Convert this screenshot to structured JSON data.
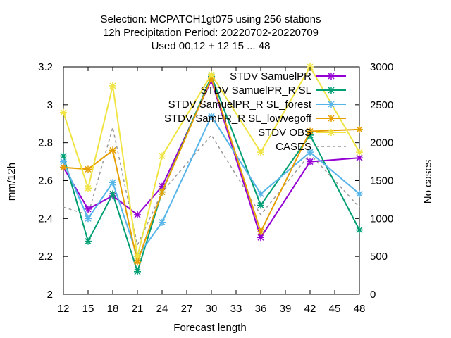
{
  "chart_data": {
    "type": "line",
    "title_lines": [
      "Selection: MCPATCH1gt075 using   256 stations",
      "12h Precipitation    Period: 20220702-20220709",
      "Used  00,12  + 12 15 ... 48"
    ],
    "xlabel": "Forecast length",
    "ylabel": "mm/12h",
    "y2label": "No cases",
    "xlim": [
      12,
      48
    ],
    "ylim": [
      2.0,
      3.2
    ],
    "y2lim": [
      0,
      3000
    ],
    "x_ticks": [
      12,
      15,
      18,
      21,
      24,
      27,
      30,
      33,
      36,
      39,
      42,
      45,
      48
    ],
    "y_ticks": [
      "2",
      "2.2",
      "2.4",
      "2.6",
      "2.8",
      "3",
      "3.2"
    ],
    "y2_ticks": [
      "0",
      "500",
      "1000",
      "1500",
      "2000",
      "2500",
      "3000"
    ],
    "legend_position": "top-right",
    "series": [
      {
        "name": "STDV SamuelPR",
        "color": "#9400d3",
        "axis": "y",
        "x": [
          12,
          15,
          18,
          21,
          24,
          30,
          36,
          42,
          48
        ],
        "values": [
          2.67,
          2.45,
          2.52,
          2.42,
          2.57,
          3.13,
          2.3,
          2.7,
          2.72
        ]
      },
      {
        "name": "STDV SamuelPR_R SL",
        "color": "#009e73",
        "axis": "y",
        "x": [
          12,
          15,
          18,
          21,
          24,
          30,
          36,
          42,
          48
        ],
        "values": [
          2.73,
          2.28,
          2.53,
          2.12,
          2.54,
          3.15,
          2.47,
          2.84,
          2.34
        ]
      },
      {
        "name": "STDV SamuelPR_R SL_forest",
        "color": "#56b4e9",
        "axis": "y",
        "x": [
          12,
          15,
          18,
          21,
          24,
          30,
          36,
          42,
          48
        ],
        "values": [
          2.7,
          2.4,
          2.59,
          2.2,
          2.38,
          2.94,
          2.53,
          2.75,
          2.53
        ]
      },
      {
        "name": "STDV SamPR_R SL_lowvegoff",
        "color": "#e69f00",
        "axis": "y",
        "x": [
          12,
          15,
          18,
          21,
          24,
          30,
          36,
          42,
          48
        ],
        "values": [
          2.67,
          2.66,
          2.76,
          2.17,
          2.54,
          3.14,
          2.33,
          2.86,
          2.87
        ]
      },
      {
        "name": "STDV OBS",
        "color": "#f0e442",
        "axis": "y",
        "x": [
          12,
          15,
          18,
          21,
          24,
          30,
          36,
          42,
          48
        ],
        "values": [
          2.96,
          2.56,
          3.1,
          2.2,
          2.73,
          3.16,
          2.75,
          3.2,
          2.75
        ]
      },
      {
        "name": "CASES",
        "color": "#999999",
        "axis": "y2",
        "dashed": true,
        "x": [
          12,
          15,
          18,
          21,
          24,
          30,
          36,
          42,
          48
        ],
        "values": [
          1150,
          1050,
          2200,
          650,
          1350,
          2100,
          1050,
          1850,
          1150
        ]
      }
    ]
  }
}
